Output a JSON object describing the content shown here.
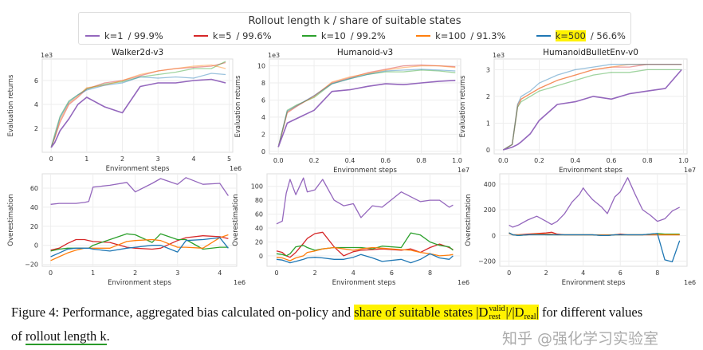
{
  "legend": {
    "title": "Rollout length k / share of suitable states",
    "items": [
      {
        "label_k": "k=1",
        "label_share": " / 99.9%",
        "color": "#9467bd"
      },
      {
        "label_k": "k=5",
        "label_share": " / 99.6%",
        "color": "#d62728"
      },
      {
        "label_k": "k=10",
        "label_share": " / 99.2%",
        "color": "#2ca02c"
      },
      {
        "label_k": "k=100",
        "label_share": " / 91.3%",
        "color": "#ff7f0e"
      },
      {
        "label_k": "k=500",
        "label_share": " / 56.6%",
        "color": "#1f77b4",
        "highlighted": true
      }
    ]
  },
  "caption": {
    "prefix": "Figure 4: Performance, aggregated bias calculated on-policy and ",
    "highlight": "share of suitable states |D",
    "math_sup": "valid",
    "math_sub": "rest",
    "math_rest": "|/|D",
    "math_sub2": "real",
    "math_end": "|",
    "suffix": " for different values",
    "line2_prefix": "of ",
    "line2_underlined": "rollout length k",
    "line2_end": "."
  },
  "watermark": "知乎 @强化学习实验室",
  "chart_data": [
    {
      "type": "line",
      "title": "Walker2d-v3",
      "xlabel": "Environment steps",
      "ylabel": "Evaluation returns",
      "x_multiplier": "1e6",
      "y_multiplier": "1e3",
      "xlim": [
        -0.25,
        5.1
      ],
      "ylim": [
        0,
        7.8
      ],
      "grid": true,
      "xticks": [
        0,
        1,
        2,
        3,
        4,
        5
      ],
      "xtick_labels": [
        "0",
        "1",
        "2",
        "3",
        "4",
        "5"
      ],
      "yticks": [
        2,
        4,
        6
      ],
      "ytick_labels": [
        "2",
        "4",
        "6"
      ],
      "x": [
        0,
        0.1,
        0.25,
        0.5,
        0.75,
        1,
        1.5,
        2,
        2.5,
        3,
        3.5,
        4,
        4.5,
        4.9
      ],
      "series": [
        {
          "name": "k=1",
          "values": [
            0.4,
            0.8,
            1.8,
            2.8,
            4.0,
            4.6,
            3.8,
            3.3,
            5.5,
            5.8,
            5.8,
            6.0,
            6.1,
            5.8
          ]
        },
        {
          "name": "k=5",
          "values": [
            0.4,
            1.2,
            2.5,
            4.0,
            4.6,
            5.3,
            5.8,
            6.0,
            6.4,
            6.8,
            7.0,
            7.1,
            7.2,
            7.5
          ]
        },
        {
          "name": "k=10",
          "values": [
            0.4,
            1.5,
            3.0,
            4.3,
            4.8,
            5.3,
            5.7,
            5.9,
            6.3,
            6.5,
            6.7,
            7.0,
            7.0,
            7.6
          ]
        },
        {
          "name": "k=100",
          "values": [
            0.4,
            1.2,
            2.7,
            4.1,
            4.7,
            5.4,
            5.6,
            6.0,
            6.5,
            6.8,
            7.0,
            7.2,
            7.3,
            7.0
          ]
        },
        {
          "name": "k=500",
          "values": [
            0.4,
            1.3,
            2.9,
            4.2,
            4.8,
            5.2,
            5.6,
            5.8,
            6.3,
            6.2,
            6.3,
            6.2,
            6.6,
            6.5
          ]
        }
      ]
    },
    {
      "type": "line",
      "title": "Humanoid-v3",
      "xlabel": "Environment steps",
      "ylabel": "Evaluation returns",
      "x_multiplier": "1e7",
      "y_multiplier": "1e3",
      "xlim": [
        -0.05,
        1.02
      ],
      "ylim": [
        -0.3,
        10.8
      ],
      "grid": true,
      "xticks": [
        0,
        0.2,
        0.4,
        0.6,
        0.8,
        1.0
      ],
      "xtick_labels": [
        "0.0",
        "0.2",
        "0.4",
        "0.6",
        "0.8",
        "1.0"
      ],
      "yticks": [
        0,
        2,
        4,
        6,
        8,
        10
      ],
      "ytick_labels": [
        "0",
        "2",
        "4",
        "6",
        "8",
        "10"
      ],
      "x": [
        0,
        0.05,
        0.1,
        0.2,
        0.3,
        0.4,
        0.5,
        0.6,
        0.7,
        0.8,
        0.9,
        0.99
      ],
      "series": [
        {
          "name": "k=1",
          "values": [
            0.5,
            3.3,
            3.8,
            4.8,
            7.0,
            7.2,
            7.6,
            7.9,
            7.8,
            8.0,
            8.2,
            8.3
          ]
        },
        {
          "name": "k=5",
          "values": [
            0.5,
            4.5,
            5.2,
            6.5,
            8.0,
            8.6,
            9.2,
            9.6,
            10.0,
            10.1,
            10.0,
            9.9
          ]
        },
        {
          "name": "k=10",
          "values": [
            0.5,
            4.8,
            5.4,
            6.3,
            7.9,
            8.5,
            9.0,
            9.3,
            9.3,
            9.5,
            9.4,
            9.2
          ]
        },
        {
          "name": "k=100",
          "values": [
            0.5,
            4.6,
            5.3,
            6.4,
            8.1,
            8.7,
            9.1,
            9.5,
            9.8,
            10.0,
            10.0,
            9.8
          ]
        },
        {
          "name": "k=500",
          "values": [
            0.5,
            4.7,
            5.3,
            6.5,
            7.9,
            8.5,
            9.0,
            9.4,
            9.5,
            9.6,
            9.5,
            9.4
          ]
        }
      ]
    },
    {
      "type": "line",
      "title": "HumanoidBulletEnv-v0",
      "xlabel": "Environment steps",
      "ylabel": "Evaluation returns",
      "x_multiplier": "1e7",
      "y_multiplier": "1e3",
      "xlim": [
        -0.05,
        1.02
      ],
      "ylim": [
        -0.15,
        3.4
      ],
      "grid": true,
      "xticks": [
        0,
        0.2,
        0.4,
        0.6,
        0.8,
        1.0
      ],
      "xtick_labels": [
        "0.0",
        "0.2",
        "0.4",
        "0.6",
        "0.8",
        "1.0"
      ],
      "yticks": [
        0,
        1,
        2,
        3
      ],
      "ytick_labels": [
        "0",
        "1",
        "2",
        "3"
      ],
      "x": [
        0,
        0.05,
        0.08,
        0.1,
        0.15,
        0.2,
        0.3,
        0.4,
        0.5,
        0.6,
        0.7,
        0.8,
        0.9,
        0.99
      ],
      "series": [
        {
          "name": "k=1",
          "values": [
            0,
            0.1,
            0.2,
            0.3,
            0.6,
            1.1,
            1.7,
            1.8,
            2.0,
            1.9,
            2.1,
            2.2,
            2.3,
            3.0
          ]
        },
        {
          "name": "k=5",
          "values": [
            0,
            0.2,
            1.6,
            1.9,
            2.1,
            2.3,
            2.6,
            2.8,
            3.0,
            3.1,
            3.1,
            3.2,
            3.2,
            3.2
          ]
        },
        {
          "name": "k=10",
          "values": [
            0,
            0.2,
            1.6,
            1.8,
            2.0,
            2.2,
            2.4,
            2.6,
            2.8,
            2.9,
            2.9,
            3.0,
            3.0,
            3.0
          ]
        },
        {
          "name": "k=100",
          "values": [
            0,
            0.2,
            1.7,
            1.9,
            2.1,
            2.3,
            2.6,
            2.8,
            3.0,
            3.1,
            3.2,
            3.2,
            3.2,
            3.2
          ]
        },
        {
          "name": "k=500",
          "values": [
            0,
            0.2,
            1.7,
            2.0,
            2.2,
            2.5,
            2.8,
            3.0,
            3.1,
            3.2,
            3.2,
            3.2,
            3.2,
            3.2
          ]
        }
      ]
    },
    {
      "type": "line",
      "title": "",
      "xlabel": "Environment steps",
      "ylabel": "Overestimation",
      "x_multiplier": "1e6",
      "xlim": [
        -0.2,
        4.4
      ],
      "ylim": [
        -22,
        75
      ],
      "grid": true,
      "xticks": [
        0,
        1,
        2,
        3,
        4
      ],
      "xtick_labels": [
        "0",
        "1",
        "2",
        "3",
        "4"
      ],
      "yticks": [
        -20,
        0,
        20,
        40,
        60
      ],
      "ytick_labels": [
        "−20",
        "0",
        "20",
        "40",
        "60"
      ],
      "x": [
        0,
        0.2,
        0.4,
        0.6,
        0.8,
        0.9,
        1.0,
        1.4,
        1.8,
        2.0,
        2.4,
        2.6,
        3.0,
        3.2,
        3.6,
        4.0,
        4.2
      ],
      "series": [
        {
          "name": "k=1",
          "values": [
            43,
            44,
            44,
            44,
            45,
            46,
            61,
            63,
            66,
            56,
            65,
            70,
            64,
            71,
            64,
            65,
            52
          ]
        },
        {
          "name": "k=5",
          "values": [
            -5,
            -3,
            2,
            6,
            6,
            5,
            4,
            3,
            -2,
            -3,
            -4,
            -3,
            5,
            8,
            10,
            9,
            7
          ]
        },
        {
          "name": "k=10",
          "values": [
            -6,
            -4,
            -3,
            -3,
            -3,
            -3,
            0,
            6,
            12,
            11,
            3,
            12,
            6,
            6,
            -4,
            -2,
            -2
          ]
        },
        {
          "name": "k=100",
          "values": [
            -16,
            -12,
            -8,
            -5,
            -3,
            -3,
            -3,
            -3,
            4,
            5,
            6,
            5,
            -2,
            -2,
            -3,
            8,
            11
          ]
        },
        {
          "name": "k=500",
          "values": [
            -12,
            -8,
            -4,
            -3,
            -3,
            -3,
            -4,
            -6,
            -3,
            -2,
            0,
            0,
            -7,
            5,
            6,
            8,
            -3
          ]
        }
      ]
    },
    {
      "type": "line",
      "title": "",
      "xlabel": "Environment steps",
      "ylabel": "Overestimation",
      "x_multiplier": "1e6",
      "xlim": [
        -0.5,
        9.6
      ],
      "ylim": [
        -15,
        118
      ],
      "grid": true,
      "xticks": [
        0,
        2,
        4,
        6,
        8
      ],
      "xtick_labels": [
        "0",
        "2",
        "4",
        "6",
        "8"
      ],
      "yticks": [
        0,
        20,
        40,
        60,
        80,
        100
      ],
      "ytick_labels": [
        "0",
        "20",
        "40",
        "60",
        "80",
        "100"
      ],
      "x": [
        0,
        0.3,
        0.5,
        0.7,
        1.0,
        1.4,
        1.6,
        2.0,
        2.4,
        3.0,
        3.5,
        4.0,
        4.4,
        5.0,
        5.5,
        6.5,
        7.0,
        7.5,
        8.0,
        8.5,
        9.0,
        9.2
      ],
      "series": [
        {
          "name": "k=1",
          "values": [
            46,
            50,
            90,
            110,
            88,
            112,
            92,
            95,
            110,
            80,
            72,
            75,
            55,
            72,
            70,
            92,
            85,
            78,
            80,
            80,
            70,
            73
          ]
        },
        {
          "name": "k=5",
          "values": [
            7,
            5,
            0,
            -2,
            5,
            18,
            25,
            32,
            34,
            13,
            0,
            6,
            8,
            9,
            10,
            8,
            10,
            5,
            12,
            17,
            12,
            9
          ]
        },
        {
          "name": "k=10",
          "values": [
            3,
            2,
            0,
            3,
            13,
            15,
            12,
            8,
            10,
            12,
            12,
            12,
            12,
            10,
            14,
            12,
            33,
            30,
            20,
            15,
            13,
            8
          ]
        },
        {
          "name": "k=100",
          "values": [
            -2,
            -3,
            -5,
            -7,
            -3,
            0,
            5,
            7,
            10,
            12,
            10,
            8,
            10,
            12,
            11,
            9,
            8,
            5,
            3,
            0,
            1,
            2
          ]
        },
        {
          "name": "k=500",
          "values": [
            -5,
            -6,
            -8,
            -10,
            -8,
            -5,
            -3,
            -2,
            -3,
            -5,
            -5,
            -2,
            2,
            -3,
            -8,
            -5,
            -10,
            -5,
            3,
            -3,
            -5,
            0
          ]
        }
      ]
    },
    {
      "type": "line",
      "title": "",
      "xlabel": "Environment steps",
      "ylabel": "Overestimation",
      "x_multiplier": "1e6",
      "xlim": [
        -0.5,
        9.6
      ],
      "ylim": [
        -240,
        480
      ],
      "grid": true,
      "xticks": [
        0,
        2,
        4,
        6,
        8
      ],
      "xtick_labels": [
        "0",
        "2",
        "4",
        "6",
        "8"
      ],
      "yticks": [
        -200,
        0,
        200,
        400
      ],
      "ytick_labels": [
        "−200",
        "0",
        "200",
        "400"
      ],
      "x": [
        0,
        0.2,
        0.5,
        1.0,
        1.5,
        2.0,
        2.3,
        2.6,
        3.0,
        3.4,
        3.8,
        4.0,
        4.2,
        4.5,
        5.0,
        5.3,
        5.7,
        6.0,
        6.4,
        6.8,
        7.2,
        7.6,
        8.0,
        8.4,
        8.8,
        9.2
      ],
      "series": [
        {
          "name": "k=1",
          "values": [
            80,
            65,
            80,
            120,
            150,
            110,
            85,
            110,
            170,
            260,
            320,
            370,
            330,
            280,
            220,
            170,
            300,
            340,
            450,
            320,
            200,
            160,
            110,
            130,
            190,
            220
          ]
        },
        {
          "name": "k=5",
          "values": [
            20,
            5,
            5,
            10,
            15,
            20,
            25,
            10,
            5,
            5,
            5,
            5,
            5,
            5,
            0,
            0,
            5,
            10,
            5,
            5,
            5,
            5,
            5,
            5,
            5,
            5
          ]
        },
        {
          "name": "k=10",
          "values": [
            20,
            5,
            0,
            5,
            10,
            5,
            5,
            5,
            5,
            5,
            5,
            5,
            5,
            5,
            0,
            0,
            5,
            5,
            5,
            5,
            5,
            10,
            15,
            10,
            10,
            10
          ]
        },
        {
          "name": "k=100",
          "values": [
            15,
            5,
            5,
            5,
            10,
            10,
            10,
            5,
            5,
            5,
            5,
            5,
            5,
            5,
            5,
            5,
            5,
            5,
            5,
            5,
            5,
            5,
            5,
            5,
            5,
            5
          ]
        },
        {
          "name": "k=500",
          "values": [
            20,
            5,
            0,
            5,
            5,
            5,
            5,
            5,
            5,
            5,
            5,
            5,
            5,
            5,
            0,
            0,
            5,
            5,
            5,
            5,
            5,
            10,
            15,
            -190,
            -205,
            -40
          ]
        }
      ]
    }
  ]
}
